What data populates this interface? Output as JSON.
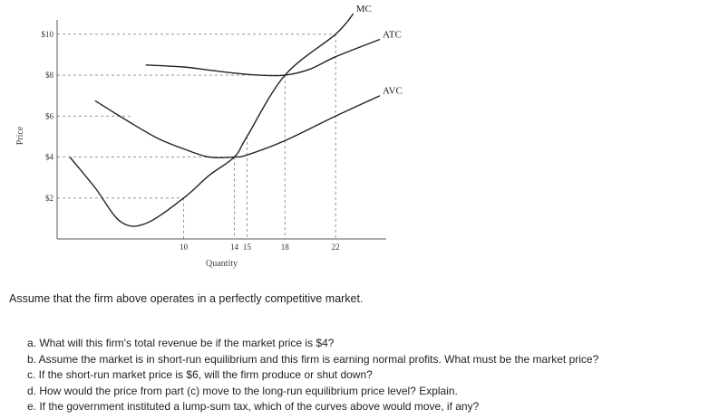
{
  "chart_data": {
    "type": "line",
    "xlabel": "Quantity",
    "ylabel": "Price",
    "x_ticks": [
      10,
      14,
      15,
      18,
      22
    ],
    "y_ticks": [
      {
        "value": 2,
        "label": "$2"
      },
      {
        "value": 4,
        "label": "$4"
      },
      {
        "value": 6,
        "label": "$6"
      },
      {
        "value": 8,
        "label": "$8"
      },
      {
        "value": 10,
        "label": "$10"
      }
    ],
    "xlim": [
      0,
      26
    ],
    "ylim": [
      0,
      10.7
    ],
    "grid": false,
    "reference_lines": "dashed",
    "series": [
      {
        "name": "MC",
        "x": [
          1,
          3,
          5,
          7,
          10,
          12,
          14,
          15,
          18,
          22,
          23.4
        ],
        "y": [
          4,
          2.5,
          0.85,
          0.75,
          2,
          3.1,
          4,
          5,
          8,
          10,
          11
        ]
      },
      {
        "name": "ATC",
        "x": [
          7,
          10,
          12,
          14,
          16,
          18,
          20,
          22,
          25.5
        ],
        "y": [
          8.5,
          8.4,
          8.25,
          8.1,
          8.0,
          8.0,
          8.3,
          8.9,
          9.75
        ]
      },
      {
        "name": "AVC",
        "x": [
          3,
          6,
          8,
          10,
          12,
          14,
          15,
          18,
          22,
          25.5
        ],
        "y": [
          6.75,
          5.6,
          4.9,
          4.4,
          4.0,
          4.0,
          4.1,
          4.8,
          6.0,
          7.0
        ]
      }
    ]
  },
  "text": {
    "intro": "Assume that the firm above operates in a perfectly competitive market.",
    "questions": [
      "a. What will this firm's total revenue be if the market price is $4?",
      "b. Assume the market is in short-run equilibrium and this firm is earning normal profits. What must be the market price?",
      "c. If the short-run market price is $6, will the firm produce or shut down?",
      "d. How would the price from part (c) move to the long-run equilibrium price level? Explain.",
      "e. If the government instituted a lump-sum tax, which of the curves above would move, if any?"
    ]
  }
}
